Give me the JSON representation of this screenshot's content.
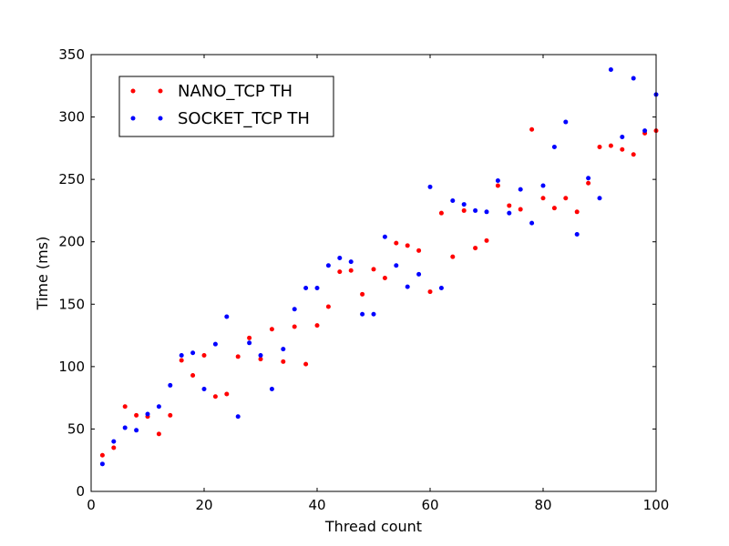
{
  "chart_data": {
    "type": "scatter",
    "xlabel": "Thread count",
    "ylabel": "Time (ms)",
    "xlim": [
      0,
      100
    ],
    "ylim": [
      0,
      350
    ],
    "xticks": [
      0,
      20,
      40,
      60,
      80,
      100
    ],
    "yticks": [
      0,
      50,
      100,
      150,
      200,
      250,
      300,
      350
    ],
    "grid": false,
    "legend_position": "top-left",
    "series": [
      {
        "name": "NANO_TCP TH",
        "color": "#ff0000",
        "x": [
          2,
          4,
          6,
          8,
          10,
          12,
          14,
          16,
          18,
          20,
          22,
          24,
          26,
          28,
          30,
          32,
          34,
          36,
          38,
          40,
          42,
          44,
          46,
          48,
          50,
          52,
          54,
          56,
          58,
          60,
          62,
          64,
          66,
          68,
          70,
          72,
          74,
          76,
          78,
          80,
          82,
          84,
          86,
          88,
          90,
          92,
          94,
          96,
          98,
          100
        ],
        "y": [
          29,
          35,
          68,
          61,
          60,
          46,
          61,
          105,
          93,
          109,
          76,
          78,
          108,
          123,
          106,
          130,
          104,
          132,
          102,
          133,
          148,
          176,
          177,
          158,
          178,
          171,
          199,
          197,
          193,
          160,
          223,
          188,
          225,
          195,
          201,
          245,
          229,
          226,
          290,
          235,
          227,
          235,
          224,
          247,
          276,
          277,
          274,
          270,
          287,
          289
        ]
      },
      {
        "name": "SOCKET_TCP TH",
        "color": "#0000ff",
        "x": [
          2,
          4,
          6,
          8,
          10,
          12,
          14,
          16,
          18,
          20,
          22,
          24,
          26,
          28,
          30,
          32,
          34,
          36,
          38,
          40,
          42,
          44,
          46,
          48,
          50,
          52,
          54,
          56,
          58,
          60,
          62,
          64,
          66,
          68,
          70,
          72,
          74,
          76,
          78,
          80,
          82,
          84,
          86,
          88,
          90,
          92,
          94,
          96,
          98,
          100
        ],
        "y": [
          22,
          40,
          51,
          49,
          62,
          68,
          85,
          109,
          111,
          82,
          118,
          140,
          60,
          119,
          109,
          82,
          114,
          146,
          163,
          163,
          181,
          187,
          184,
          142,
          142,
          204,
          181,
          164,
          174,
          244,
          163,
          233,
          230,
          225,
          224,
          249,
          223,
          242,
          215,
          245,
          276,
          296,
          206,
          251,
          235,
          338,
          284,
          331,
          289,
          318
        ]
      }
    ]
  }
}
